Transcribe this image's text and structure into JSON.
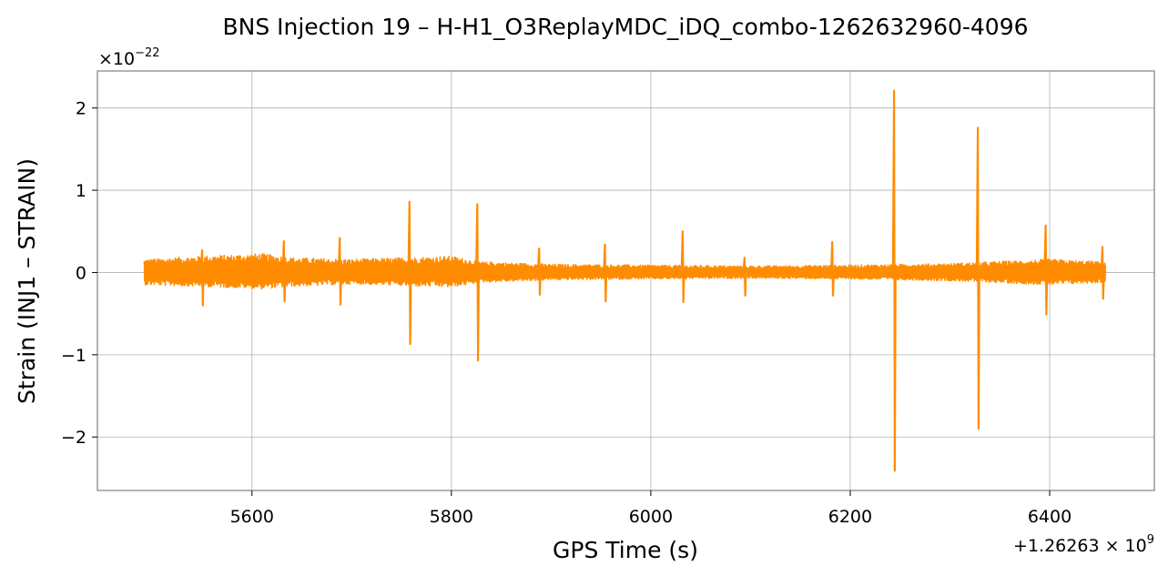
{
  "chart_data": {
    "type": "line",
    "title": "BNS Injection 19 – H-H1_O3ReplayMDC_iDQ_combo-1262632960-4096",
    "xlabel": "GPS Time (s)",
    "ylabel": "Strain (INJ1 – STRAIN)",
    "x_offset_label": "+1.26263 × 10",
    "x_offset_exponent": "9",
    "y_multiplier_label": "×10",
    "y_multiplier_exponent": "−22",
    "xlim": [
      5445,
      6505
    ],
    "ylim": [
      -2.65,
      2.45
    ],
    "x_ticks": [
      5600,
      5800,
      6000,
      6200,
      6400
    ],
    "x_tick_labels": [
      "5600",
      "5800",
      "6000",
      "6200",
      "6400"
    ],
    "y_ticks": [
      -2,
      -1,
      0,
      1,
      2
    ],
    "y_tick_labels": [
      "−2",
      "−1",
      "0",
      "1",
      "2"
    ],
    "grid": true,
    "series": [
      {
        "color": "#ff8c00",
        "x_range": [
          5492,
          6456
        ],
        "envelope": [
          {
            "x": 5492,
            "upper": 0.16,
            "lower": -0.15
          },
          {
            "x": 5550,
            "upper": 0.2,
            "lower": -0.17
          },
          {
            "x": 5610,
            "upper": 0.23,
            "lower": -0.2
          },
          {
            "x": 5640,
            "upper": 0.18,
            "lower": -0.17
          },
          {
            "x": 5700,
            "upper": 0.16,
            "lower": -0.14
          },
          {
            "x": 5800,
            "upper": 0.2,
            "lower": -0.18
          },
          {
            "x": 5830,
            "upper": 0.13,
            "lower": -0.12
          },
          {
            "x": 5900,
            "upper": 0.1,
            "lower": -0.09
          },
          {
            "x": 6000,
            "upper": 0.09,
            "lower": -0.08
          },
          {
            "x": 6100,
            "upper": 0.08,
            "lower": -0.07
          },
          {
            "x": 6200,
            "upper": 0.09,
            "lower": -0.08
          },
          {
            "x": 6300,
            "upper": 0.11,
            "lower": -0.1
          },
          {
            "x": 6400,
            "upper": 0.16,
            "lower": -0.15
          },
          {
            "x": 6456,
            "upper": 0.13,
            "lower": -0.12
          }
        ],
        "spikes": [
          {
            "x": 5550,
            "max": 0.27,
            "min": -0.4
          },
          {
            "x": 5632,
            "max": 0.38,
            "min": -0.35
          },
          {
            "x": 5688,
            "max": 0.42,
            "min": -0.39
          },
          {
            "x": 5758,
            "max": 0.86,
            "min": -0.87
          },
          {
            "x": 5826,
            "max": 0.83,
            "min": -1.07
          },
          {
            "x": 5888,
            "max": 0.29,
            "min": -0.27
          },
          {
            "x": 5954,
            "max": 0.34,
            "min": -0.35
          },
          {
            "x": 6032,
            "max": 0.5,
            "min": -0.36
          },
          {
            "x": 6094,
            "max": 0.18,
            "min": -0.28
          },
          {
            "x": 6182,
            "max": 0.37,
            "min": -0.28
          },
          {
            "x": 6244,
            "max": 2.21,
            "min": -2.41
          },
          {
            "x": 6328,
            "max": 1.76,
            "min": -1.9
          },
          {
            "x": 6396,
            "max": 0.57,
            "min": -0.51
          },
          {
            "x": 6453,
            "max": 0.31,
            "min": -0.32
          }
        ]
      }
    ]
  }
}
